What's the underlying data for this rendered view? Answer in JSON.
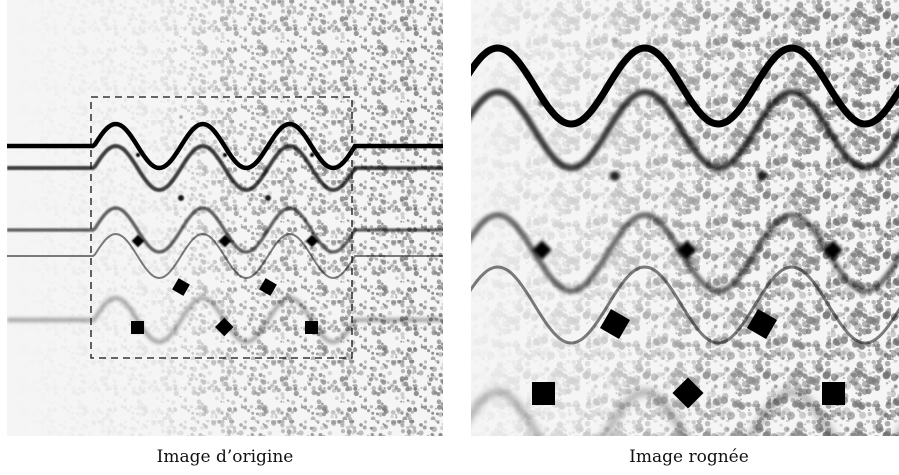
{
  "figure": {
    "left": {
      "caption": "Image d’origine",
      "ink_color": "#000000",
      "noise_color": "#6f6f6f",
      "background": "#f5f5f5",
      "crop_frame": "dashed"
    },
    "right": {
      "caption": "Image rognée",
      "ink_color": "#000000",
      "noise_color": "#6f6f6f",
      "background": "#f5f5f5"
    }
  }
}
